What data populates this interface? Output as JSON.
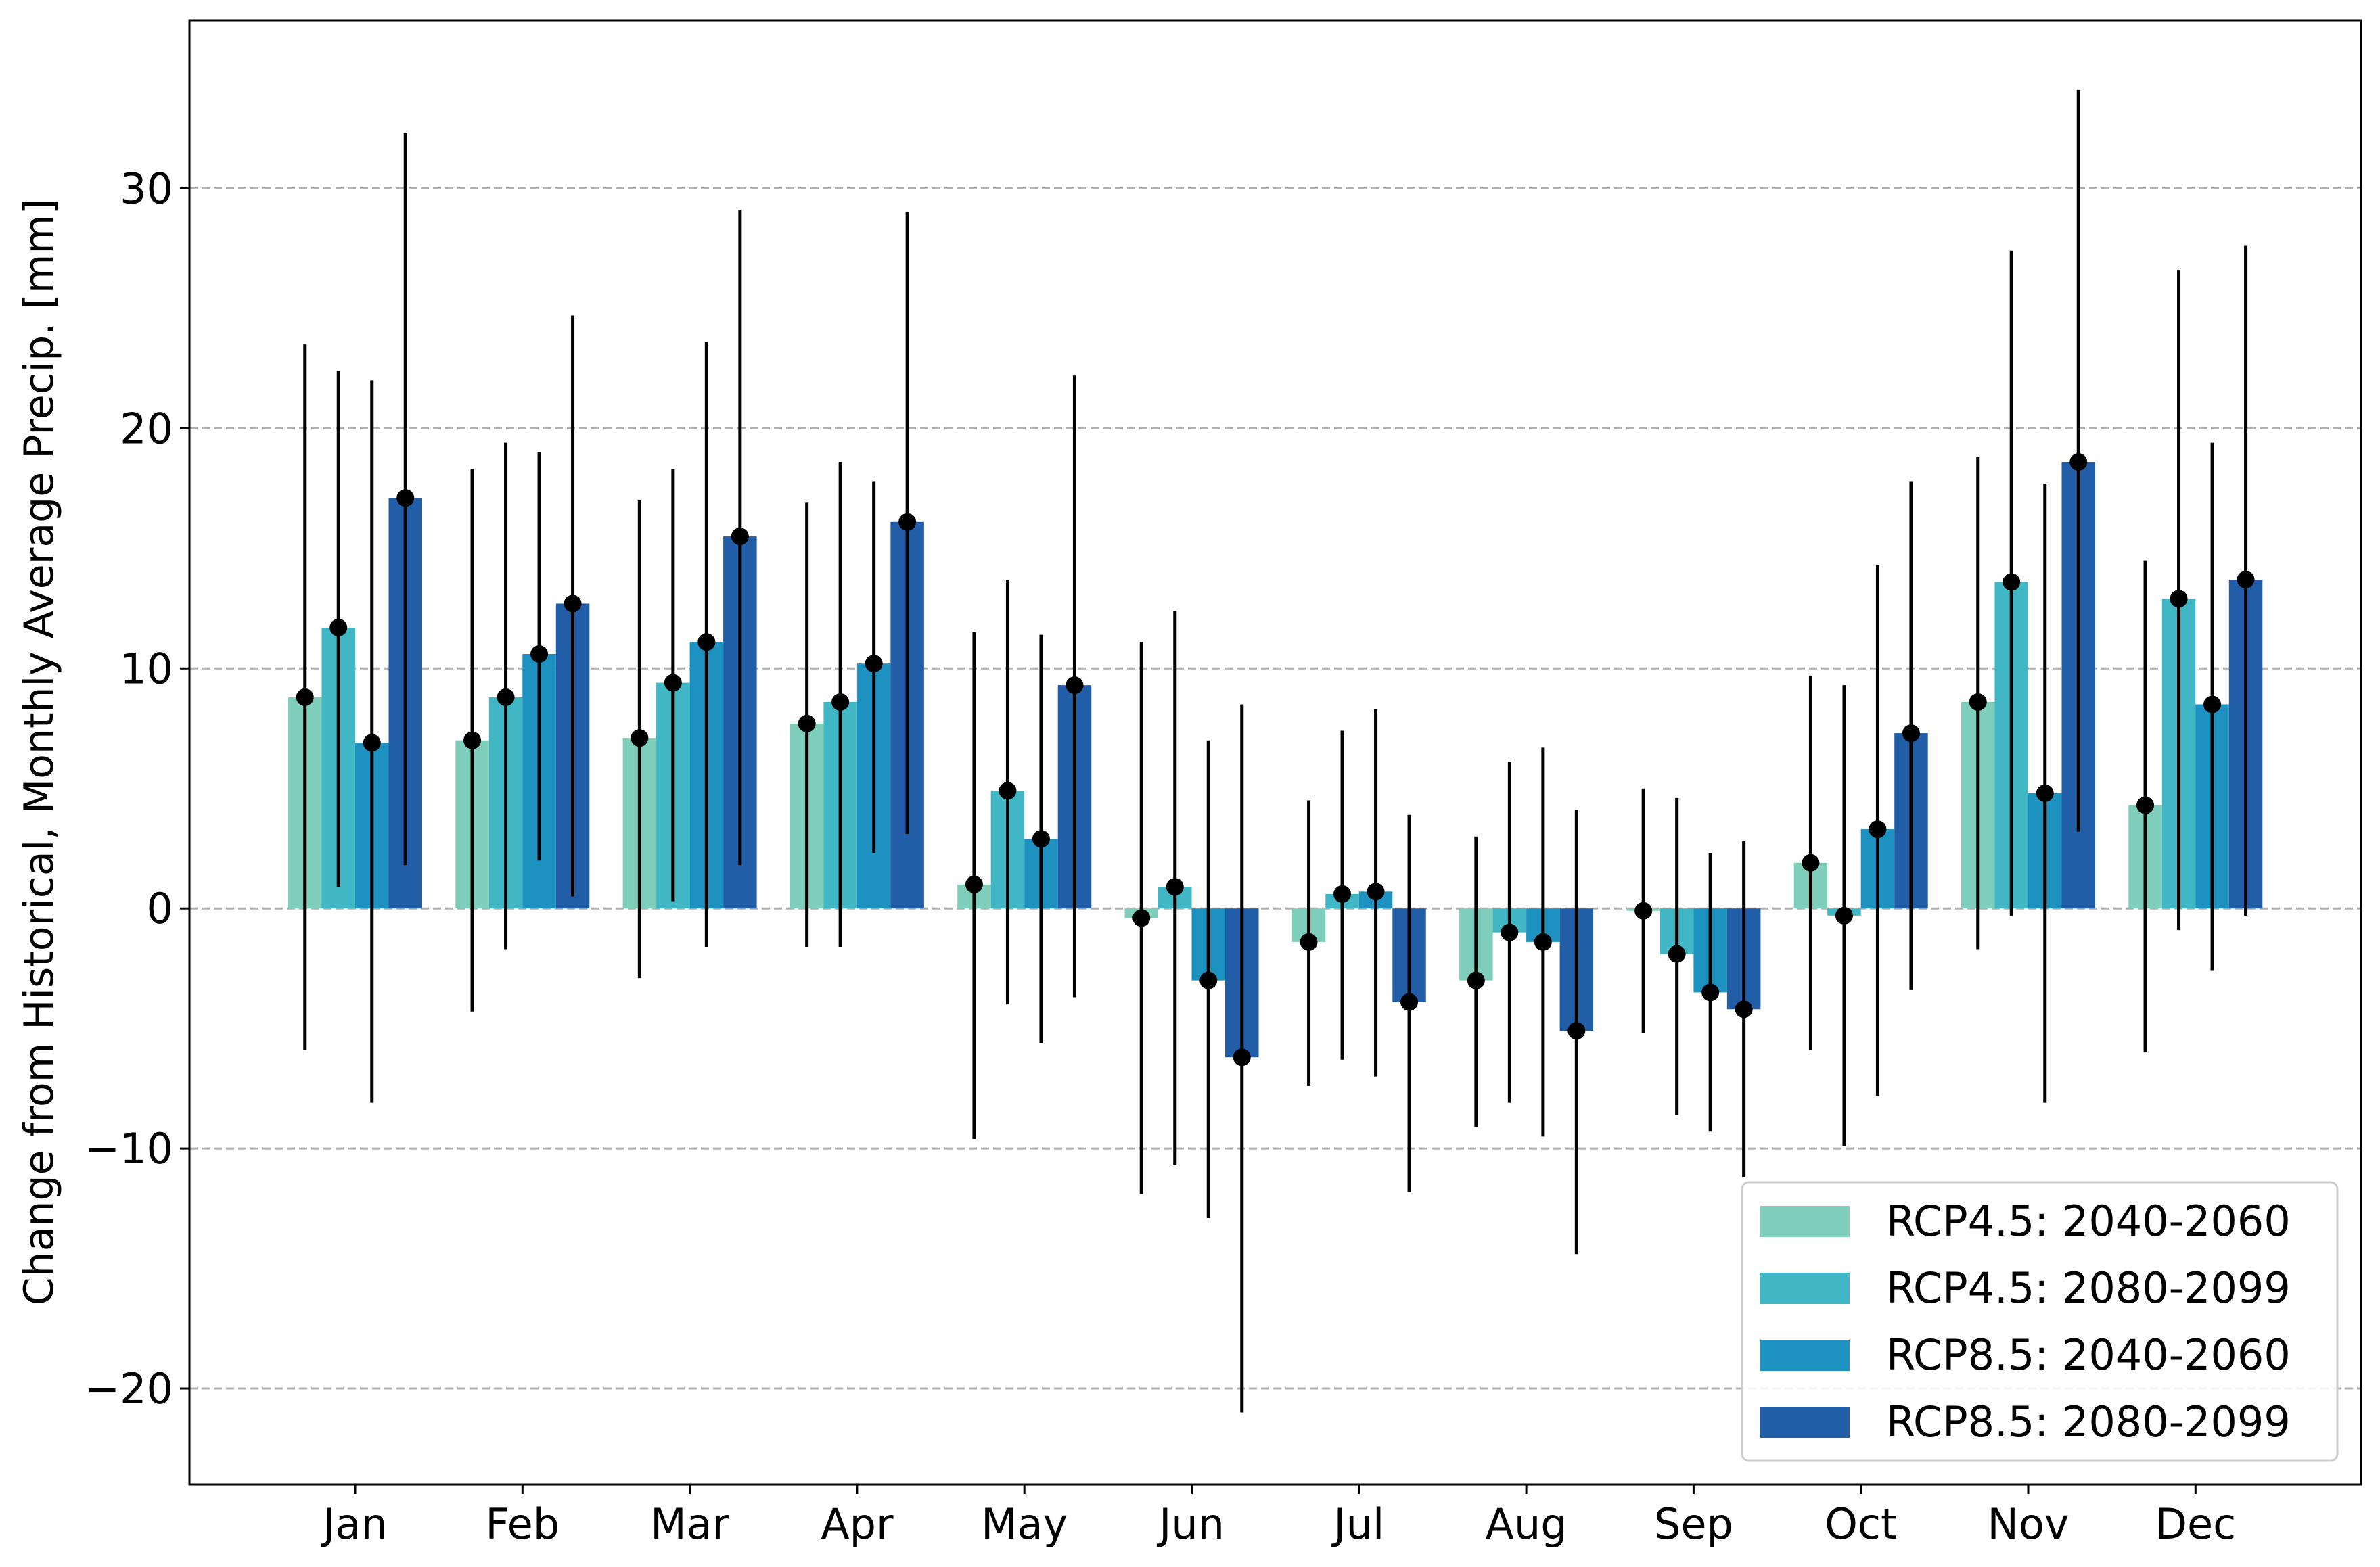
{
  "chart_data": {
    "type": "bar",
    "title": "",
    "xlabel": "",
    "ylabel": "Change from Historical, Monthly Average Precip. [mm]",
    "ylim": [
      -24,
      37
    ],
    "yticks": [
      -20,
      -10,
      0,
      10,
      20,
      30
    ],
    "ytick_labels": [
      "−20",
      "−10",
      "0",
      "10",
      "20",
      "30"
    ],
    "grid": "horizontal dashed",
    "legend_position": "bottom-right",
    "categories": [
      "Jan",
      "Feb",
      "Mar",
      "Apr",
      "May",
      "Jun",
      "Jul",
      "Aug",
      "Sep",
      "Oct",
      "Nov",
      "Dec"
    ],
    "series": [
      {
        "name": "RCP4.5: 2040-2060",
        "color": "#7fcdbb",
        "values": [
          8.8,
          7.0,
          7.1,
          7.7,
          1.0,
          -0.4,
          -1.4,
          -3.0,
          -0.1,
          1.9,
          8.6,
          4.3
        ],
        "err_low": [
          -5.9,
          -4.3,
          -2.9,
          -1.6,
          -9.6,
          -11.9,
          -7.4,
          -9.1,
          -5.2,
          -5.9,
          -1.7,
          -6.0
        ],
        "err_high": [
          23.5,
          18.3,
          17.0,
          16.9,
          11.5,
          11.1,
          4.5,
          3.0,
          5.0,
          9.7,
          18.8,
          14.5
        ]
      },
      {
        "name": "RCP4.5: 2080-2099",
        "color": "#41b6c4",
        "values": [
          11.7,
          8.8,
          9.4,
          8.6,
          4.9,
          0.9,
          0.6,
          -1.0,
          -1.9,
          -0.3,
          13.6,
          12.9
        ],
        "err_low": [
          0.9,
          -1.7,
          0.3,
          -1.6,
          -4.0,
          -10.7,
          -6.3,
          -8.1,
          -8.6,
          -9.9,
          -0.3,
          -0.9
        ],
        "err_high": [
          22.4,
          19.4,
          18.3,
          18.6,
          13.7,
          12.4,
          7.4,
          6.1,
          4.6,
          9.3,
          27.4,
          26.6
        ]
      },
      {
        "name": "RCP8.5: 2040-2060",
        "color": "#1d91c0",
        "values": [
          6.9,
          10.6,
          11.1,
          10.2,
          2.9,
          -3.0,
          0.7,
          -1.4,
          -3.5,
          3.3,
          4.8,
          8.5
        ],
        "err_low": [
          -8.1,
          2.0,
          -1.6,
          2.3,
          -5.6,
          -12.9,
          -7.0,
          -9.5,
          -9.3,
          -7.8,
          -8.1,
          -2.6
        ],
        "err_high": [
          22.0,
          19.0,
          23.6,
          17.8,
          11.4,
          7.0,
          8.3,
          6.7,
          2.3,
          14.3,
          17.7,
          19.4
        ]
      },
      {
        "name": "RCP8.5: 2080-2099",
        "color": "#225ea8",
        "values": [
          17.1,
          12.7,
          15.5,
          16.1,
          9.3,
          -6.2,
          -3.9,
          -5.1,
          -4.2,
          7.3,
          18.6,
          13.7
        ],
        "err_low": [
          1.8,
          0.5,
          1.8,
          3.1,
          -3.7,
          -21.0,
          -11.8,
          -14.4,
          -11.2,
          -3.4,
          3.2,
          -0.3
        ],
        "err_high": [
          32.3,
          24.7,
          29.1,
          29.0,
          22.2,
          8.5,
          3.9,
          4.1,
          2.8,
          17.8,
          34.1,
          27.6
        ]
      }
    ]
  }
}
